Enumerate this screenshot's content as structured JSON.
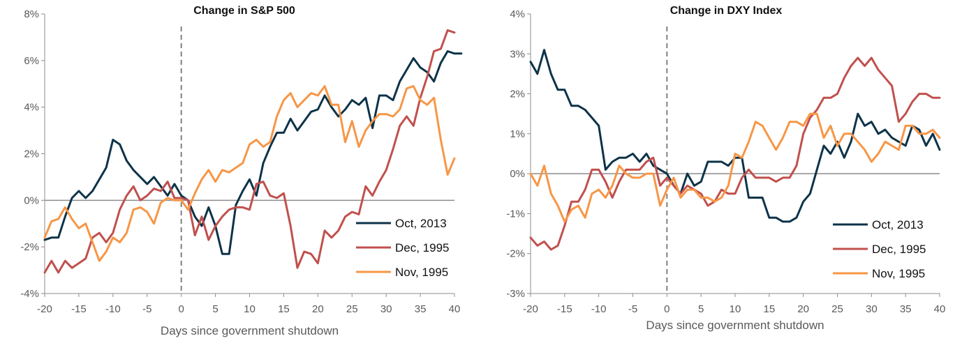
{
  "colors": {
    "oct2013": "#0d3349",
    "dec1995": "#c0504d",
    "nov1995": "#f79646",
    "axis": "#8c8c8c",
    "event_line": "#808080"
  },
  "chart_data": [
    {
      "type": "line",
      "title": "Change in S&P 500",
      "xlabel": "Days since government shutdown",
      "ylabel": "",
      "xlim": [
        -20,
        40
      ],
      "ylim": [
        -4,
        8
      ],
      "x_ticks": [
        -20,
        -15,
        -10,
        -5,
        0,
        5,
        10,
        15,
        20,
        25,
        30,
        35,
        40
      ],
      "y_ticks": [
        -4,
        -2,
        0,
        2,
        4,
        6,
        8
      ],
      "y_tick_labels": [
        "-4%",
        "-2%",
        "0%",
        "2%",
        "4%",
        "6%",
        "8%"
      ],
      "event_line_x": 0,
      "legend_position": "bottom-right",
      "series": [
        {
          "name": "Oct, 2013",
          "color_key": "oct2013",
          "x_start": -20,
          "values": [
            -1.7,
            -1.6,
            -1.6,
            -0.7,
            0.1,
            0.4,
            0.1,
            0.4,
            0.9,
            1.4,
            2.6,
            2.4,
            1.7,
            1.3,
            1.0,
            0.7,
            1.0,
            0.6,
            0.2,
            0.7,
            0.2,
            0.0,
            -0.7,
            -1.1,
            -0.3,
            -1.1,
            -2.3,
            -2.3,
            -0.2,
            0.4,
            0.9,
            0.2,
            1.6,
            2.3,
            2.9,
            2.9,
            3.5,
            3.0,
            3.4,
            3.8,
            3.9,
            4.5,
            4.0,
            3.6,
            3.9,
            4.3,
            4.1,
            4.4,
            3.1,
            4.5,
            4.5,
            4.3,
            5.1,
            5.6,
            6.1,
            5.7,
            5.5,
            5.1,
            5.9,
            6.4,
            6.3,
            6.3
          ]
        },
        {
          "name": "Dec, 1995",
          "color_key": "dec1995",
          "x_start": -20,
          "values": [
            -3.1,
            -2.6,
            -3.1,
            -2.6,
            -2.9,
            -2.7,
            -2.5,
            -1.6,
            -1.4,
            -1.8,
            -1.4,
            -0.4,
            0.2,
            0.6,
            0.0,
            0.2,
            0.5,
            0.4,
            0.8,
            0.1,
            0.1,
            0.0,
            -1.5,
            -0.7,
            -1.7,
            -1.1,
            -0.7,
            -0.4,
            -0.3,
            -0.3,
            -0.4,
            0.7,
            0.8,
            0.2,
            0.1,
            0.3,
            -1.1,
            -2.9,
            -2.2,
            -2.3,
            -2.7,
            -1.3,
            -1.6,
            -1.3,
            -0.7,
            -0.5,
            -0.6,
            0.6,
            0.2,
            0.8,
            1.3,
            2.2,
            3.2,
            3.6,
            3.2,
            4.4,
            5.3,
            6.4,
            6.5,
            7.3,
            7.2
          ]
        },
        {
          "name": "Nov, 1995",
          "color_key": "nov1995",
          "x_start": -20,
          "values": [
            -1.6,
            -0.9,
            -0.8,
            -0.3,
            -0.8,
            -1.2,
            -1.0,
            -1.8,
            -2.6,
            -2.2,
            -1.6,
            -1.8,
            -1.4,
            -0.4,
            -0.3,
            -0.5,
            -1.0,
            -0.1,
            0.1,
            0.0,
            0.0,
            -0.4,
            0.3,
            0.9,
            1.3,
            0.8,
            1.3,
            1.2,
            1.4,
            1.6,
            2.4,
            2.6,
            2.3,
            2.5,
            3.6,
            4.3,
            4.6,
            4.0,
            4.3,
            4.6,
            4.5,
            4.9,
            4.1,
            4.1,
            2.5,
            3.4,
            2.3,
            3.0,
            3.4,
            3.7,
            3.7,
            3.6,
            3.9,
            4.8,
            4.9,
            4.3,
            4.1,
            4.4,
            2.6,
            1.1,
            1.8
          ]
        }
      ]
    },
    {
      "type": "line",
      "title": "Change in DXY Index",
      "xlabel": "Days since government shutdown",
      "ylabel": "",
      "xlim": [
        -20,
        40
      ],
      "ylim": [
        -3,
        4
      ],
      "x_ticks": [
        -20,
        -15,
        -10,
        -5,
        0,
        5,
        10,
        15,
        20,
        25,
        30,
        35,
        40
      ],
      "y_ticks": [
        -3,
        -2,
        -1,
        0,
        1,
        2,
        3,
        4
      ],
      "y_tick_labels": [
        "-3%",
        "-2%",
        "-1%",
        "0%",
        "1%",
        "2%",
        "3%",
        "4%"
      ],
      "event_line_x": 0,
      "legend_position": "bottom-right",
      "series": [
        {
          "name": "Oct, 2013",
          "color_key": "oct2013",
          "x_start": -20,
          "values": [
            2.8,
            2.5,
            3.1,
            2.5,
            2.1,
            2.1,
            1.7,
            1.7,
            1.6,
            1.4,
            1.2,
            0.1,
            0.3,
            0.4,
            0.4,
            0.5,
            0.3,
            0.5,
            0.2,
            0.1,
            0.0,
            -0.3,
            -0.5,
            0.0,
            -0.3,
            -0.2,
            0.3,
            0.3,
            0.3,
            0.2,
            0.4,
            0.4,
            -0.6,
            -0.6,
            -0.6,
            -1.1,
            -1.1,
            -1.2,
            -1.2,
            -1.1,
            -0.7,
            -0.5,
            0.1,
            0.7,
            0.5,
            0.8,
            0.4,
            0.8,
            1.5,
            1.2,
            1.3,
            1.0,
            1.1,
            0.9,
            0.8,
            0.7,
            1.2,
            1.1,
            0.7,
            1.0,
            0.6
          ]
        },
        {
          "name": "Dec, 1995",
          "color_key": "dec1995",
          "x_start": -20,
          "values": [
            -1.6,
            -1.8,
            -1.7,
            -1.9,
            -1.8,
            -1.3,
            -0.7,
            -0.7,
            -0.4,
            0.1,
            0.1,
            -0.2,
            -0.6,
            -0.2,
            0.1,
            0.1,
            0.1,
            0.3,
            0.4,
            -0.3,
            -0.1,
            -0.3,
            -0.5,
            -0.3,
            -0.4,
            -0.5,
            -0.8,
            -0.7,
            -0.4,
            -0.5,
            -0.5,
            -0.1,
            0.1,
            -0.1,
            -0.1,
            -0.1,
            -0.2,
            -0.1,
            -0.1,
            0.2,
            1.0,
            1.4,
            1.6,
            1.9,
            1.9,
            2.0,
            2.4,
            2.7,
            2.9,
            2.7,
            2.9,
            2.6,
            2.4,
            2.2,
            1.3,
            1.5,
            1.8,
            2.0,
            2.0,
            1.9,
            1.9
          ]
        },
        {
          "name": "Nov, 1995",
          "color_key": "nov1995",
          "x_start": -20,
          "values": [
            0.0,
            -0.3,
            0.2,
            -0.5,
            -0.8,
            -1.2,
            -0.9,
            -0.8,
            -1.1,
            -0.5,
            -0.4,
            -0.6,
            -0.3,
            0.2,
            0.0,
            -0.1,
            -0.1,
            0.0,
            0.0,
            -0.8,
            -0.4,
            -0.1,
            -0.6,
            -0.4,
            -0.4,
            -0.6,
            -0.6,
            -0.7,
            -0.6,
            -0.3,
            0.5,
            0.4,
            0.8,
            1.3,
            1.2,
            0.9,
            0.6,
            0.9,
            1.3,
            1.3,
            1.2,
            1.5,
            1.5,
            0.9,
            1.2,
            0.7,
            1.0,
            1.0,
            0.8,
            0.6,
            0.3,
            0.5,
            0.8,
            0.7,
            0.6,
            1.2,
            1.2,
            1.0,
            1.0,
            1.1,
            0.9
          ]
        }
      ]
    }
  ]
}
